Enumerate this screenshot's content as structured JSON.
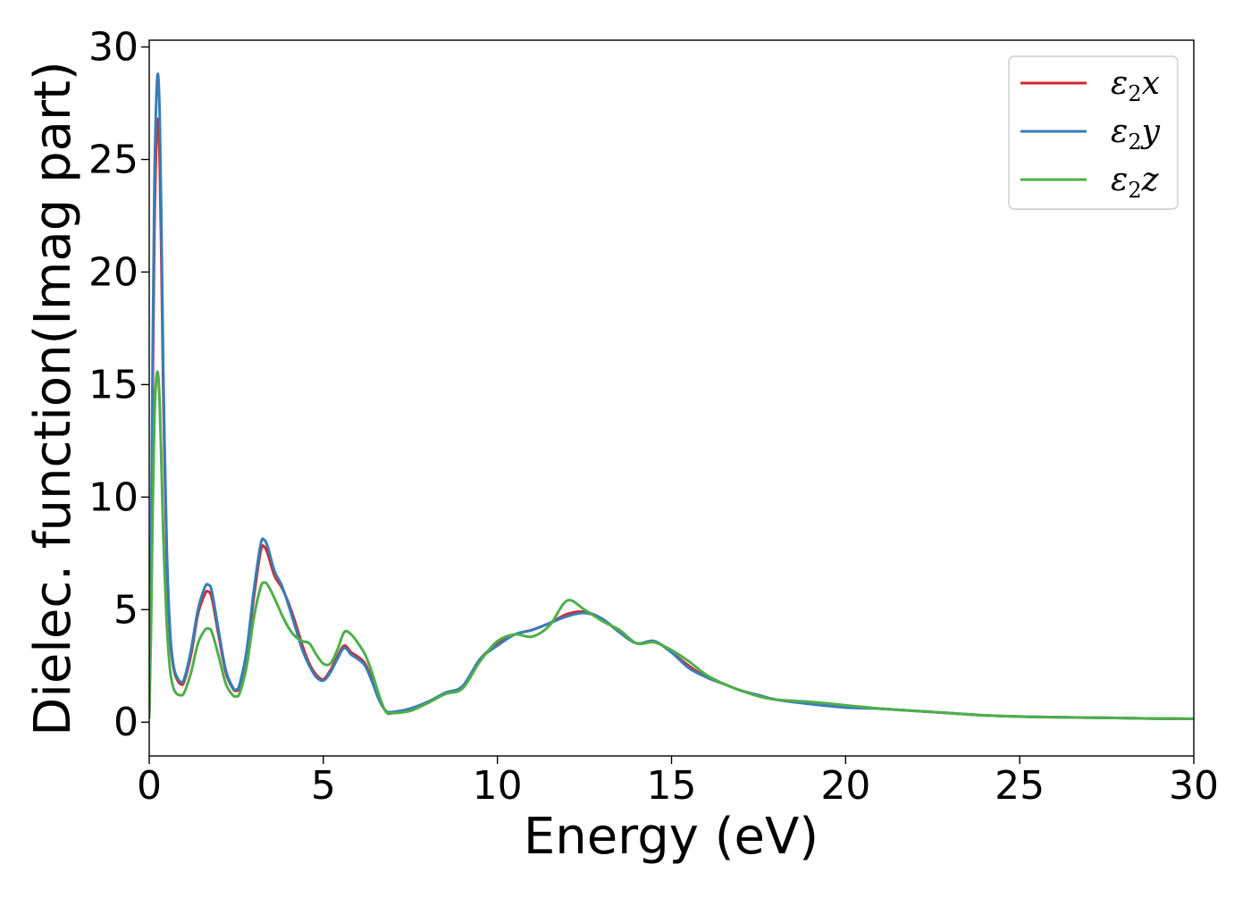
{
  "chart_data": {
    "type": "line",
    "title": "",
    "xlabel": "Energy (eV)",
    "ylabel": "Dielec. function(Imag part)",
    "xlim": [
      0,
      30
    ],
    "ylim": [
      -1.5,
      30.3
    ],
    "xticks": [
      0,
      5,
      10,
      15,
      20,
      25,
      30
    ],
    "yticks": [
      0,
      5,
      10,
      15,
      20,
      25,
      30
    ],
    "grid": false,
    "legend_position": "top-right",
    "series": [
      {
        "name": "ε₂x",
        "legend_symbol": "ε",
        "legend_subscript": "2",
        "legend_axis": "x",
        "color": "#d62728",
        "x": [
          0.0,
          0.05,
          0.1,
          0.15,
          0.2,
          0.25,
          0.3,
          0.35,
          0.4,
          0.5,
          0.6,
          0.7,
          0.8,
          0.9,
          1.0,
          1.2,
          1.4,
          1.6,
          1.7,
          1.8,
          2.0,
          2.2,
          2.4,
          2.5,
          2.6,
          2.8,
          3.0,
          3.2,
          3.3,
          3.4,
          3.6,
          3.8,
          4.0,
          4.2,
          4.4,
          4.6,
          4.8,
          5.0,
          5.2,
          5.4,
          5.6,
          5.8,
          6.0,
          6.2,
          6.4,
          6.6,
          6.8,
          7.0,
          7.5,
          8.0,
          8.5,
          9.0,
          9.5,
          10.0,
          10.5,
          11.0,
          11.5,
          12.0,
          12.5,
          13.0,
          13.5,
          14.0,
          14.5,
          15.0,
          15.5,
          16.0,
          16.5,
          17.0,
          17.5,
          18.0,
          19.0,
          20.0,
          21.0,
          22.0,
          23.0,
          24.0,
          25.0,
          26.0,
          27.0,
          28.0,
          29.0,
          30.0
        ],
        "y": [
          0.3,
          6.0,
          15.0,
          22.0,
          25.5,
          26.8,
          25.0,
          20.5,
          15.0,
          7.5,
          3.8,
          2.4,
          1.9,
          1.7,
          1.8,
          3.0,
          4.8,
          5.7,
          5.8,
          5.5,
          3.8,
          2.2,
          1.5,
          1.4,
          1.6,
          3.0,
          5.5,
          7.6,
          7.8,
          7.5,
          6.5,
          6.0,
          5.3,
          4.4,
          3.4,
          2.6,
          2.1,
          1.9,
          2.3,
          2.9,
          3.4,
          3.1,
          2.9,
          2.6,
          1.9,
          1.0,
          0.5,
          0.45,
          0.6,
          0.9,
          1.3,
          1.6,
          2.8,
          3.5,
          3.9,
          4.1,
          4.4,
          4.8,
          4.9,
          4.6,
          4.0,
          3.5,
          3.6,
          3.1,
          2.5,
          2.0,
          1.7,
          1.4,
          1.2,
          1.0,
          0.85,
          0.7,
          0.6,
          0.5,
          0.4,
          0.3,
          0.25,
          0.22,
          0.2,
          0.18,
          0.16,
          0.15
        ]
      },
      {
        "name": "ε₂y",
        "legend_symbol": "ε",
        "legend_subscript": "2",
        "legend_axis": "y",
        "color": "#377eb8",
        "x": [
          0.0,
          0.05,
          0.1,
          0.15,
          0.2,
          0.25,
          0.3,
          0.35,
          0.4,
          0.5,
          0.6,
          0.7,
          0.8,
          0.9,
          1.0,
          1.2,
          1.4,
          1.6,
          1.7,
          1.8,
          2.0,
          2.2,
          2.4,
          2.5,
          2.6,
          2.8,
          3.0,
          3.2,
          3.3,
          3.4,
          3.6,
          3.8,
          4.0,
          4.2,
          4.4,
          4.6,
          4.8,
          5.0,
          5.2,
          5.4,
          5.6,
          5.8,
          6.0,
          6.2,
          6.4,
          6.6,
          6.8,
          7.0,
          7.5,
          8.0,
          8.5,
          9.0,
          9.5,
          10.0,
          10.5,
          11.0,
          11.5,
          12.0,
          12.5,
          13.0,
          13.5,
          14.0,
          14.5,
          15.0,
          15.5,
          16.0,
          16.5,
          17.0,
          17.5,
          18.0,
          19.0,
          20.0,
          21.0,
          22.0,
          23.0,
          24.0,
          25.0,
          26.0,
          27.0,
          28.0,
          29.0,
          30.0
        ],
        "y": [
          0.3,
          6.5,
          16.5,
          24.0,
          27.5,
          28.8,
          27.0,
          22.0,
          16.0,
          8.0,
          4.0,
          2.5,
          2.0,
          1.8,
          1.9,
          3.2,
          5.0,
          6.0,
          6.1,
          5.8,
          4.0,
          2.3,
          1.55,
          1.45,
          1.7,
          3.2,
          5.8,
          7.9,
          8.1,
          7.8,
          6.7,
          6.1,
          5.2,
          4.2,
          3.2,
          2.5,
          2.0,
          1.85,
          2.2,
          2.8,
          3.3,
          3.0,
          2.8,
          2.5,
          1.8,
          1.0,
          0.5,
          0.45,
          0.6,
          0.9,
          1.3,
          1.6,
          2.8,
          3.4,
          3.9,
          4.1,
          4.4,
          4.7,
          4.85,
          4.6,
          4.0,
          3.5,
          3.6,
          3.1,
          2.4,
          2.0,
          1.7,
          1.4,
          1.2,
          1.0,
          0.8,
          0.65,
          0.6,
          0.5,
          0.4,
          0.3,
          0.25,
          0.22,
          0.2,
          0.18,
          0.16,
          0.15
        ]
      },
      {
        "name": "ε₂z",
        "legend_symbol": "ε",
        "legend_subscript": "2",
        "legend_axis": "z",
        "color": "#4daf4a",
        "x": [
          0.0,
          0.05,
          0.1,
          0.15,
          0.2,
          0.25,
          0.3,
          0.35,
          0.4,
          0.5,
          0.6,
          0.7,
          0.8,
          0.9,
          1.0,
          1.2,
          1.4,
          1.6,
          1.7,
          1.8,
          2.0,
          2.2,
          2.4,
          2.5,
          2.6,
          2.8,
          3.0,
          3.2,
          3.3,
          3.4,
          3.6,
          3.8,
          4.0,
          4.2,
          4.4,
          4.6,
          4.8,
          5.0,
          5.2,
          5.4,
          5.6,
          5.8,
          6.0,
          6.2,
          6.4,
          6.6,
          6.8,
          7.0,
          7.5,
          8.0,
          8.5,
          9.0,
          9.5,
          10.0,
          10.5,
          11.0,
          11.5,
          12.0,
          12.5,
          13.0,
          13.5,
          14.0,
          14.5,
          15.0,
          15.5,
          16.0,
          16.5,
          17.0,
          17.5,
          18.0,
          19.0,
          20.0,
          21.0,
          22.0,
          23.0,
          24.0,
          25.0,
          26.0,
          27.0,
          28.0,
          29.0,
          30.0
        ],
        "y": [
          0.2,
          4.0,
          9.5,
          13.5,
          15.2,
          15.5,
          14.2,
          11.5,
          8.5,
          4.5,
          2.3,
          1.5,
          1.25,
          1.2,
          1.3,
          2.2,
          3.5,
          4.1,
          4.15,
          4.0,
          2.9,
          1.7,
          1.2,
          1.15,
          1.3,
          2.5,
          4.6,
          6.0,
          6.2,
          6.1,
          5.5,
          4.8,
          4.2,
          3.8,
          3.6,
          3.5,
          3.0,
          2.6,
          2.6,
          3.2,
          4.0,
          3.9,
          3.5,
          3.0,
          2.2,
          1.2,
          0.45,
          0.4,
          0.5,
          0.85,
          1.25,
          1.5,
          2.7,
          3.6,
          3.9,
          3.8,
          4.3,
          5.4,
          5.0,
          4.5,
          4.1,
          3.5,
          3.55,
          3.2,
          2.7,
          2.1,
          1.7,
          1.4,
          1.15,
          1.0,
          0.9,
          0.75,
          0.6,
          0.5,
          0.4,
          0.3,
          0.25,
          0.22,
          0.2,
          0.18,
          0.16,
          0.15
        ]
      }
    ]
  }
}
